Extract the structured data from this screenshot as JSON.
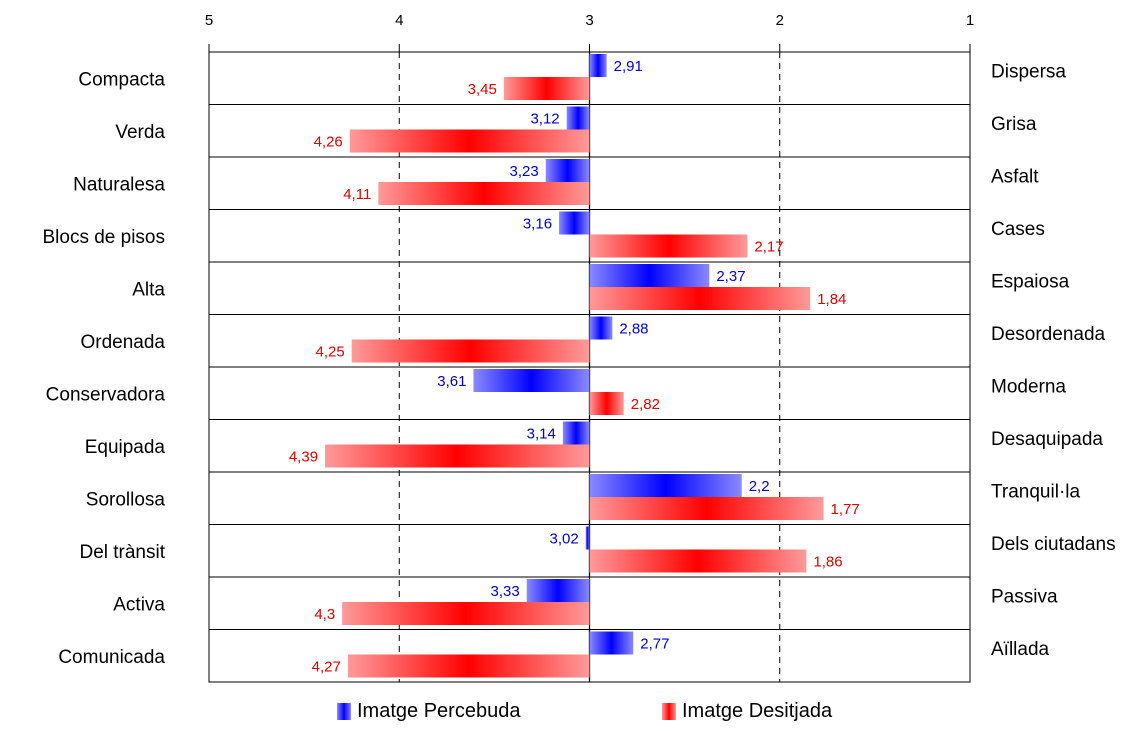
{
  "chart_data": {
    "type": "bar",
    "orientation": "horizontal-diverging",
    "x_axis": {
      "ticks": [
        "5",
        "4",
        "3",
        "2",
        "1"
      ],
      "range": [
        5,
        1
      ],
      "baseline": 3,
      "position": "top",
      "grid": "dashed"
    },
    "left_labels": [
      "Compacta",
      "Verda",
      "Naturalesa",
      "Blocs de pisos",
      "Alta",
      "Ordenada",
      "Conservadora",
      "Equipada",
      "Sorollosa",
      "Del trànsit",
      "Activa",
      "Comunicada"
    ],
    "right_labels": [
      "Dispersa",
      "Grisa",
      "Asfalt",
      "Cases",
      "Espaiosa",
      "Desordenada",
      "Moderna",
      "Desaquipada",
      "Tranquil·la",
      "Dels ciutadans",
      "Passiva",
      "Aïllada"
    ],
    "series": [
      {
        "name": "Imatge Percebuda",
        "color": "#0000ff",
        "label_color": "#0000cc",
        "values": [
          2.91,
          3.12,
          3.23,
          3.16,
          2.37,
          2.88,
          3.61,
          3.14,
          2.2,
          3.02,
          3.33,
          2.77
        ],
        "labels": [
          "2,91",
          "3,12",
          "3,23",
          "3,16",
          "2,37",
          "2,88",
          "3,61",
          "3,14",
          "2,2",
          "3,02",
          "3,33",
          "2,77"
        ]
      },
      {
        "name": "Imatge Desitjada",
        "color": "#ff0000",
        "label_color": "#e00000",
        "values": [
          3.45,
          4.26,
          4.11,
          2.17,
          1.84,
          4.25,
          2.82,
          4.39,
          1.77,
          1.86,
          4.3,
          4.27
        ],
        "labels": [
          "3,45",
          "4,26",
          "4,11",
          "2,17",
          "1,84",
          "4,25",
          "2,82",
          "4,39",
          "1,77",
          "1,86",
          "4,3",
          "4,27"
        ]
      }
    ],
    "legend": {
      "position": "bottom-center"
    }
  }
}
